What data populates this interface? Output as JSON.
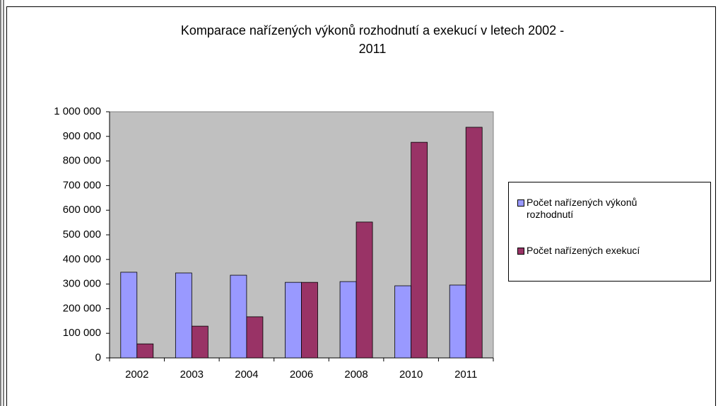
{
  "chart_data": {
    "type": "bar",
    "title": [
      "Komparace nařízených výkonů rozhodnutí a exekucí v letech     2002 -",
      "2011"
    ],
    "categories": [
      "2002",
      "2003",
      "2004",
      "2006",
      "2008",
      "2010",
      "2011"
    ],
    "series": [
      {
        "name": "Počet nařízených výkonů rozhodnutí",
        "color": "#9999ff",
        "values": [
          348000,
          345000,
          336000,
          307000,
          310000,
          293000,
          296000
        ]
      },
      {
        "name": "Počet nařízených exekucí",
        "color": "#993366",
        "values": [
          57000,
          129000,
          167000,
          307000,
          552000,
          876000,
          937000
        ]
      }
    ],
    "ylim": [
      0,
      1000000
    ],
    "yticks": [
      0,
      {
        "value": 100000,
        "label": "100 000"
      },
      {
        "value": 200000,
        "label": "200 000"
      },
      {
        "value": 300000,
        "label": "300 000"
      },
      {
        "value": 400000,
        "label": "400 000"
      },
      {
        "value": 500000,
        "label": "500 000"
      },
      {
        "value": 600000,
        "label": "600 000"
      },
      {
        "value": 700000,
        "label": "700 000"
      },
      {
        "value": 800000,
        "label": "800 000"
      },
      {
        "value": 900000,
        "label": "900 000"
      },
      {
        "value": 1000000,
        "label": "1 000 000"
      }
    ],
    "grid": false,
    "plot_background": "#c0c0c0",
    "legend": "right"
  }
}
